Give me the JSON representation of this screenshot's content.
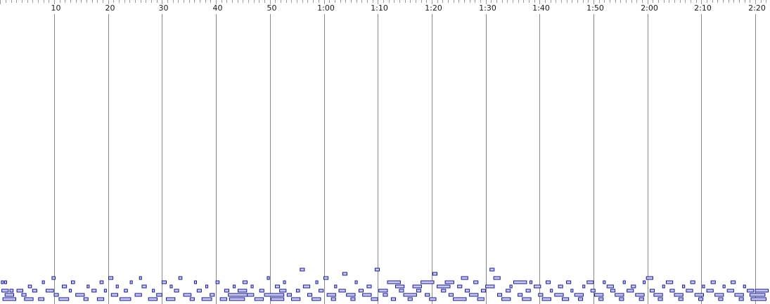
{
  "timeline": {
    "time_labels": [
      "10",
      "20",
      "30",
      "40",
      "50",
      "1:00",
      "1:10",
      "1:20",
      "1:30",
      "1:40",
      "1:50",
      "2:00",
      "2:10",
      "2:20"
    ],
    "label_seconds": [
      10,
      20,
      30,
      40,
      50,
      60,
      70,
      80,
      90,
      100,
      110,
      120,
      130,
      140
    ]
  },
  "piano_roll": {
    "note_fill": "#c8c8f0",
    "note_stroke": "#1a1a8c",
    "gridline_color": "#8a8a8a",
    "ruler_line_color": "#9a9a9a",
    "notes": [
      [
        0.2,
        0.4,
        4
      ],
      [
        0.8,
        0.4,
        4
      ],
      [
        0.3,
        1.2,
        2
      ],
      [
        1.8,
        0.6,
        2
      ],
      [
        0.9,
        1.6,
        1
      ],
      [
        0.5,
        2.4,
        0
      ],
      [
        3.1,
        1.1,
        2
      ],
      [
        4.0,
        0.8,
        1
      ],
      [
        4.5,
        1.6,
        0
      ],
      [
        5.2,
        0.6,
        3
      ],
      [
        6.0,
        0.8,
        2
      ],
      [
        7.1,
        1.0,
        0
      ],
      [
        7.8,
        0.4,
        4
      ],
      [
        8.5,
        1.4,
        2
      ],
      [
        9.6,
        0.6,
        5
      ],
      [
        10.0,
        0.8,
        1
      ],
      [
        10.9,
        1.8,
        0
      ],
      [
        11.5,
        0.8,
        3
      ],
      [
        12.8,
        0.4,
        2
      ],
      [
        13.2,
        0.6,
        4
      ],
      [
        14.0,
        1.6,
        1
      ],
      [
        15.5,
        0.8,
        0
      ],
      [
        16.1,
        0.4,
        3
      ],
      [
        17.0,
        0.8,
        2
      ],
      [
        18.0,
        1.2,
        0
      ],
      [
        18.5,
        0.6,
        4
      ],
      [
        19.3,
        0.4,
        2
      ],
      [
        20.1,
        0.8,
        5
      ],
      [
        20.6,
        1.2,
        1
      ],
      [
        21.5,
        0.4,
        3
      ],
      [
        22.2,
        2.0,
        0
      ],
      [
        23.0,
        0.6,
        2
      ],
      [
        24.1,
        0.4,
        4
      ],
      [
        25.0,
        1.2,
        1
      ],
      [
        25.8,
        0.4,
        5
      ],
      [
        26.3,
        0.8,
        3
      ],
      [
        27.5,
        1.6,
        0
      ],
      [
        28.2,
        0.4,
        2
      ],
      [
        29.0,
        1.0,
        1
      ],
      [
        30.0,
        0.8,
        4
      ],
      [
        30.8,
        1.6,
        0
      ],
      [
        31.5,
        0.4,
        3
      ],
      [
        32.3,
        0.8,
        2
      ],
      [
        33.1,
        0.6,
        5
      ],
      [
        34.0,
        1.4,
        1
      ],
      [
        35.2,
        0.8,
        0
      ],
      [
        36.0,
        0.4,
        4
      ],
      [
        36.5,
        0.8,
        2
      ],
      [
        37.4,
        1.8,
        0
      ],
      [
        38.1,
        0.4,
        3
      ],
      [
        38.9,
        0.8,
        1
      ],
      [
        40.0,
        0.6,
        4
      ],
      [
        40.8,
        1.2,
        0
      ],
      [
        41.6,
        0.8,
        2
      ],
      [
        42.3,
        4.2,
        1
      ],
      [
        42.5,
        2.8,
        0
      ],
      [
        43.2,
        0.4,
        3
      ],
      [
        44.1,
        1.6,
        2
      ],
      [
        45.0,
        0.8,
        4
      ],
      [
        45.8,
        1.2,
        1
      ],
      [
        46.5,
        0.4,
        3
      ],
      [
        47.2,
        1.6,
        0
      ],
      [
        48.1,
        0.8,
        2
      ],
      [
        49.0,
        3.6,
        1
      ],
      [
        49.5,
        0.4,
        5
      ],
      [
        50.2,
        2.4,
        0
      ],
      [
        51.0,
        0.8,
        3
      ],
      [
        51.8,
        1.2,
        2
      ],
      [
        52.5,
        0.4,
        4
      ],
      [
        53.2,
        0.8,
        1
      ],
      [
        54.0,
        1.6,
        0
      ],
      [
        54.9,
        0.6,
        2
      ],
      [
        55.6,
        0.8,
        7
      ],
      [
        56.2,
        1.2,
        3
      ],
      [
        57.0,
        0.8,
        1
      ],
      [
        57.8,
        1.6,
        0
      ],
      [
        58.5,
        0.4,
        4
      ],
      [
        59.1,
        0.8,
        2
      ],
      [
        60.0,
        0.8,
        5
      ],
      [
        60.6,
        1.6,
        1
      ],
      [
        61.4,
        0.8,
        0
      ],
      [
        62.0,
        0.4,
        3
      ],
      [
        62.8,
        1.2,
        2
      ],
      [
        63.5,
        0.8,
        6
      ],
      [
        64.2,
        1.6,
        1
      ],
      [
        65.0,
        0.8,
        0
      ],
      [
        65.8,
        0.4,
        4
      ],
      [
        66.5,
        0.8,
        2
      ],
      [
        67.2,
        1.6,
        1
      ],
      [
        68.0,
        0.8,
        3
      ],
      [
        68.8,
        1.2,
        0
      ],
      [
        69.5,
        0.8,
        7
      ],
      [
        70.2,
        1.6,
        2
      ],
      [
        71.0,
        0.8,
        1
      ],
      [
        71.8,
        2.4,
        4
      ],
      [
        72.5,
        0.8,
        0
      ],
      [
        73.3,
        1.6,
        3
      ],
      [
        74.0,
        0.8,
        2
      ],
      [
        74.8,
        2.4,
        1
      ],
      [
        75.6,
        0.8,
        0
      ],
      [
        76.5,
        1.6,
        3
      ],
      [
        77.2,
        0.8,
        2
      ],
      [
        78.0,
        2.4,
        4
      ],
      [
        78.8,
        0.8,
        1
      ],
      [
        79.6,
        1.2,
        0
      ],
      [
        80.2,
        0.8,
        6
      ],
      [
        81.0,
        2.4,
        3
      ],
      [
        81.8,
        0.8,
        2
      ],
      [
        82.5,
        1.6,
        4
      ],
      [
        83.2,
        0.8,
        1
      ],
      [
        84.0,
        2.4,
        0
      ],
      [
        84.8,
        0.8,
        3
      ],
      [
        85.5,
        1.2,
        5
      ],
      [
        86.2,
        0.8,
        2
      ],
      [
        87.0,
        1.6,
        1
      ],
      [
        87.8,
        0.8,
        4
      ],
      [
        88.5,
        1.2,
        0
      ],
      [
        89.2,
        0.8,
        2
      ],
      [
        90.0,
        1.6,
        3
      ],
      [
        90.8,
        0.8,
        7
      ],
      [
        91.5,
        1.2,
        5
      ],
      [
        92.2,
        0.8,
        1
      ],
      [
        93.0,
        1.6,
        0
      ],
      [
        93.8,
        0.8,
        2
      ],
      [
        94.5,
        0.4,
        3
      ],
      [
        95.2,
        2.4,
        4
      ],
      [
        96.0,
        0.8,
        1
      ],
      [
        96.8,
        1.6,
        0
      ],
      [
        97.5,
        0.8,
        2
      ],
      [
        98.2,
        0.4,
        4
      ],
      [
        99.0,
        1.2,
        3
      ],
      [
        99.8,
        0.8,
        1
      ],
      [
        100.5,
        1.6,
        0
      ],
      [
        101.2,
        0.8,
        4
      ],
      [
        102.0,
        0.4,
        2
      ],
      [
        102.8,
        1.6,
        1
      ],
      [
        103.5,
        0.8,
        3
      ],
      [
        104.2,
        1.2,
        0
      ],
      [
        105.0,
        0.8,
        4
      ],
      [
        105.8,
        0.4,
        2
      ],
      [
        106.5,
        1.6,
        1
      ],
      [
        107.2,
        0.8,
        0
      ],
      [
        108.0,
        0.4,
        3
      ],
      [
        108.8,
        1.2,
        4
      ],
      [
        109.5,
        0.8,
        2
      ],
      [
        110.2,
        1.6,
        1
      ],
      [
        111.0,
        0.8,
        0
      ],
      [
        111.8,
        0.4,
        4
      ],
      [
        112.5,
        1.2,
        3
      ],
      [
        113.2,
        0.8,
        2
      ],
      [
        114.0,
        1.6,
        1
      ],
      [
        114.8,
        0.8,
        0
      ],
      [
        115.5,
        0.4,
        4
      ],
      [
        116.2,
        1.2,
        2
      ],
      [
        117.0,
        0.8,
        3
      ],
      [
        117.8,
        1.6,
        1
      ],
      [
        118.5,
        0.8,
        0
      ],
      [
        119.2,
        0.4,
        4
      ],
      [
        119.8,
        1.2,
        5
      ],
      [
        120.5,
        0.8,
        2
      ],
      [
        121.2,
        1.6,
        1
      ],
      [
        122.0,
        0.8,
        0
      ],
      [
        122.8,
        0.4,
        3
      ],
      [
        123.5,
        1.2,
        4
      ],
      [
        124.2,
        0.8,
        2
      ],
      [
        125.0,
        1.6,
        1
      ],
      [
        125.8,
        0.8,
        0
      ],
      [
        126.5,
        0.4,
        3
      ],
      [
        127.2,
        1.2,
        2
      ],
      [
        128.0,
        0.8,
        4
      ],
      [
        128.8,
        1.6,
        1
      ],
      [
        129.5,
        0.8,
        0
      ],
      [
        130.2,
        0.4,
        3
      ],
      [
        131.0,
        1.2,
        2
      ],
      [
        131.8,
        0.8,
        4
      ],
      [
        132.5,
        1.6,
        1
      ],
      [
        133.2,
        0.8,
        0
      ],
      [
        134.0,
        0.4,
        3
      ],
      [
        134.8,
        1.2,
        2
      ],
      [
        135.5,
        0.8,
        4
      ],
      [
        136.2,
        1.6,
        1
      ],
      [
        137.0,
        0.8,
        0
      ],
      [
        137.8,
        0.4,
        3
      ],
      [
        138.5,
        1.2,
        2
      ],
      [
        139.0,
        2.8,
        1
      ],
      [
        139.2,
        2.8,
        0
      ],
      [
        140.0,
        2.4,
        2
      ]
    ]
  }
}
